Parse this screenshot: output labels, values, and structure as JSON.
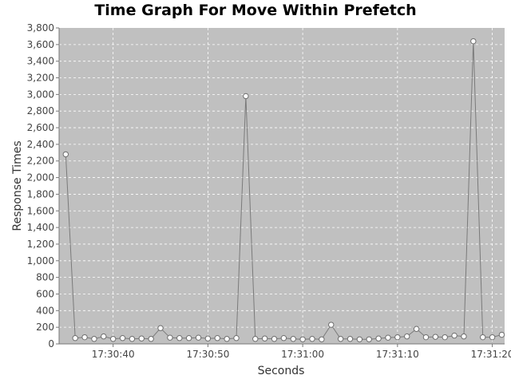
{
  "chart_data": {
    "type": "line",
    "title": "Time Graph For Move Within Prefetch",
    "xlabel": "Seconds",
    "ylabel": "Response Times",
    "ylim": [
      0,
      3800
    ],
    "y_ticks": [
      "0",
      "200",
      "400",
      "600",
      "800",
      "1,000",
      "1,200",
      "1,400",
      "1,600",
      "1,800",
      "2,000",
      "2,200",
      "2,400",
      "2,600",
      "2,800",
      "3,000",
      "3,200",
      "3,400",
      "3,600",
      "3,800"
    ],
    "x_ticks": [
      "17:30:40",
      "17:30:50",
      "17:31:00",
      "17:31:10",
      "17:31:20"
    ],
    "xlim": [
      "17:30:34.3",
      "17:31:21.3"
    ],
    "grid": true,
    "series": [
      {
        "x": [
          "17:30:35",
          "17:30:36",
          "17:30:37",
          "17:30:38",
          "17:30:39",
          "17:30:40",
          "17:30:41",
          "17:30:42",
          "17:30:43",
          "17:30:44",
          "17:30:45",
          "17:30:46",
          "17:30:47",
          "17:30:48",
          "17:30:49",
          "17:30:50",
          "17:30:51",
          "17:30:52",
          "17:30:53",
          "17:30:54",
          "17:30:55",
          "17:30:56",
          "17:30:57",
          "17:30:58",
          "17:30:59",
          "17:31:00",
          "17:31:01",
          "17:31:02",
          "17:31:03",
          "17:31:04",
          "17:31:05",
          "17:31:06",
          "17:31:07",
          "17:31:08",
          "17:31:09",
          "17:31:10",
          "17:31:11",
          "17:31:12",
          "17:31:13",
          "17:31:14",
          "17:31:15",
          "17:31:16",
          "17:31:17",
          "17:31:18",
          "17:31:19",
          "17:31:20",
          "17:31:21"
        ],
        "values": [
          2280,
          70,
          80,
          60,
          90,
          60,
          70,
          60,
          65,
          60,
          190,
          75,
          70,
          70,
          75,
          65,
          70,
          60,
          70,
          2980,
          60,
          65,
          60,
          70,
          60,
          55,
          60,
          55,
          230,
          60,
          60,
          55,
          55,
          65,
          75,
          80,
          90,
          180,
          80,
          85,
          80,
          100,
          90,
          3640,
          80,
          80,
          110
        ]
      }
    ]
  }
}
